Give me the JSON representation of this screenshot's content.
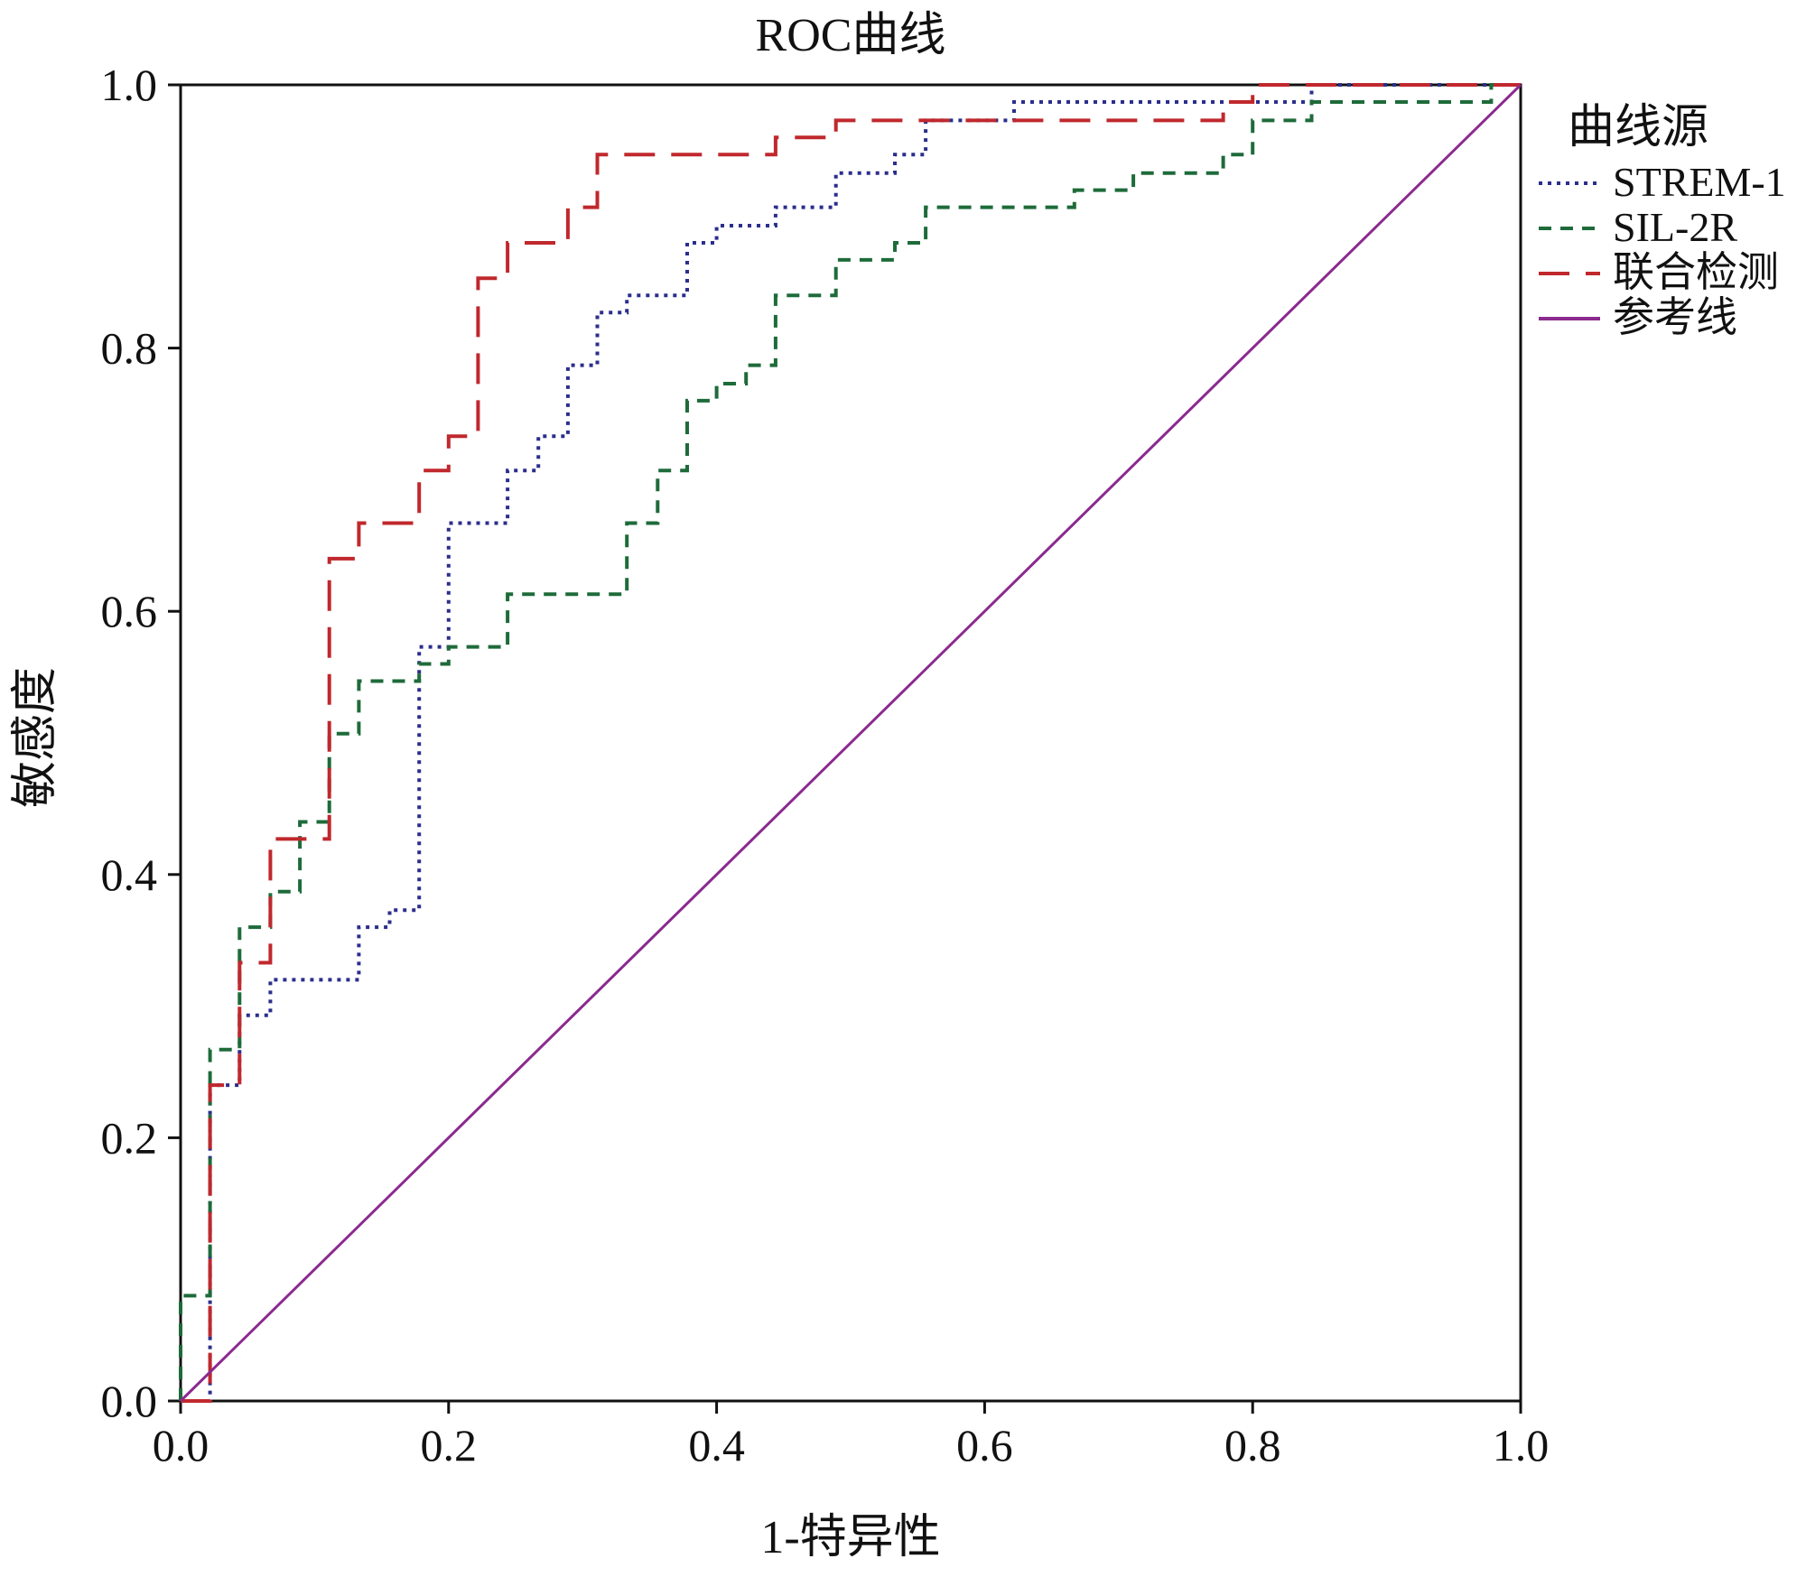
{
  "chart_data": {
    "type": "line",
    "title": "ROC曲线",
    "xlabel": "1-特异性",
    "ylabel": "敏感度",
    "xlim": [
      0,
      1
    ],
    "ylim": [
      0,
      1
    ],
    "xticks": [
      "0.0",
      "0.2",
      "0.4",
      "0.6",
      "0.8",
      "1.0"
    ],
    "yticks": [
      "0.0",
      "0.2",
      "0.4",
      "0.6",
      "0.8",
      "1.0"
    ],
    "legend_title": "曲线源",
    "legend_position": "right",
    "grid": false,
    "series": [
      {
        "name": "STREM-1",
        "color": "#2b2e8c",
        "dash": "dotted",
        "points": [
          [
            0,
            0
          ],
          [
            0.022,
            0
          ],
          [
            0.022,
            0.24
          ],
          [
            0.044,
            0.24
          ],
          [
            0.044,
            0.293
          ],
          [
            0.067,
            0.293
          ],
          [
            0.067,
            0.32
          ],
          [
            0.133,
            0.32
          ],
          [
            0.133,
            0.36
          ],
          [
            0.156,
            0.36
          ],
          [
            0.156,
            0.373
          ],
          [
            0.178,
            0.373
          ],
          [
            0.178,
            0.573
          ],
          [
            0.2,
            0.573
          ],
          [
            0.2,
            0.667
          ],
          [
            0.244,
            0.667
          ],
          [
            0.244,
            0.707
          ],
          [
            0.267,
            0.707
          ],
          [
            0.267,
            0.733
          ],
          [
            0.289,
            0.733
          ],
          [
            0.289,
            0.787
          ],
          [
            0.311,
            0.787
          ],
          [
            0.311,
            0.827
          ],
          [
            0.333,
            0.827
          ],
          [
            0.333,
            0.84
          ],
          [
            0.378,
            0.84
          ],
          [
            0.378,
            0.88
          ],
          [
            0.4,
            0.88
          ],
          [
            0.4,
            0.893
          ],
          [
            0.444,
            0.893
          ],
          [
            0.444,
            0.907
          ],
          [
            0.489,
            0.907
          ],
          [
            0.489,
            0.933
          ],
          [
            0.533,
            0.933
          ],
          [
            0.533,
            0.947
          ],
          [
            0.556,
            0.947
          ],
          [
            0.556,
            0.973
          ],
          [
            0.622,
            0.973
          ],
          [
            0.622,
            0.987
          ],
          [
            0.844,
            0.987
          ],
          [
            0.844,
            1.0
          ],
          [
            1.0,
            1.0
          ]
        ]
      },
      {
        "name": "SIL-2R",
        "color": "#1e6b3a",
        "dash": "dashed",
        "points": [
          [
            0,
            0
          ],
          [
            0,
            0.08
          ],
          [
            0.022,
            0.08
          ],
          [
            0.022,
            0.267
          ],
          [
            0.044,
            0.267
          ],
          [
            0.044,
            0.36
          ],
          [
            0.067,
            0.36
          ],
          [
            0.067,
            0.387
          ],
          [
            0.089,
            0.387
          ],
          [
            0.089,
            0.44
          ],
          [
            0.111,
            0.44
          ],
          [
            0.111,
            0.507
          ],
          [
            0.133,
            0.507
          ],
          [
            0.133,
            0.547
          ],
          [
            0.178,
            0.547
          ],
          [
            0.178,
            0.56
          ],
          [
            0.2,
            0.56
          ],
          [
            0.2,
            0.573
          ],
          [
            0.244,
            0.573
          ],
          [
            0.244,
            0.613
          ],
          [
            0.333,
            0.613
          ],
          [
            0.333,
            0.667
          ],
          [
            0.356,
            0.667
          ],
          [
            0.356,
            0.707
          ],
          [
            0.378,
            0.707
          ],
          [
            0.378,
            0.76
          ],
          [
            0.4,
            0.76
          ],
          [
            0.4,
            0.773
          ],
          [
            0.422,
            0.773
          ],
          [
            0.422,
            0.787
          ],
          [
            0.444,
            0.787
          ],
          [
            0.444,
            0.84
          ],
          [
            0.489,
            0.84
          ],
          [
            0.489,
            0.867
          ],
          [
            0.533,
            0.867
          ],
          [
            0.533,
            0.88
          ],
          [
            0.556,
            0.88
          ],
          [
            0.556,
            0.907
          ],
          [
            0.667,
            0.907
          ],
          [
            0.667,
            0.92
          ],
          [
            0.711,
            0.92
          ],
          [
            0.711,
            0.933
          ],
          [
            0.778,
            0.933
          ],
          [
            0.778,
            0.947
          ],
          [
            0.8,
            0.947
          ],
          [
            0.8,
            0.973
          ],
          [
            0.844,
            0.973
          ],
          [
            0.844,
            0.987
          ],
          [
            0.978,
            0.987
          ],
          [
            0.978,
            1.0
          ],
          [
            1.0,
            1.0
          ]
        ]
      },
      {
        "name": "联合检测",
        "color": "#c0282d",
        "dash": "longdash",
        "points": [
          [
            0,
            0
          ],
          [
            0.022,
            0
          ],
          [
            0.022,
            0.027
          ],
          [
            0.022,
            0.24
          ],
          [
            0.044,
            0.24
          ],
          [
            0.044,
            0.333
          ],
          [
            0.067,
            0.333
          ],
          [
            0.067,
            0.427
          ],
          [
            0.111,
            0.427
          ],
          [
            0.111,
            0.64
          ],
          [
            0.133,
            0.64
          ],
          [
            0.133,
            0.667
          ],
          [
            0.178,
            0.667
          ],
          [
            0.178,
            0.707
          ],
          [
            0.2,
            0.707
          ],
          [
            0.2,
            0.733
          ],
          [
            0.222,
            0.733
          ],
          [
            0.222,
            0.853
          ],
          [
            0.244,
            0.853
          ],
          [
            0.244,
            0.88
          ],
          [
            0.289,
            0.88
          ],
          [
            0.289,
            0.907
          ],
          [
            0.311,
            0.907
          ],
          [
            0.311,
            0.947
          ],
          [
            0.444,
            0.947
          ],
          [
            0.444,
            0.96
          ],
          [
            0.489,
            0.96
          ],
          [
            0.489,
            0.973
          ],
          [
            0.778,
            0.973
          ],
          [
            0.778,
            0.987
          ],
          [
            0.8,
            0.987
          ],
          [
            0.8,
            1.0
          ],
          [
            1.0,
            1.0
          ]
        ]
      },
      {
        "name": "参考线",
        "color": "#8b2a8f",
        "dash": "solid",
        "points": [
          [
            0,
            0
          ],
          [
            1,
            1
          ]
        ]
      }
    ]
  }
}
